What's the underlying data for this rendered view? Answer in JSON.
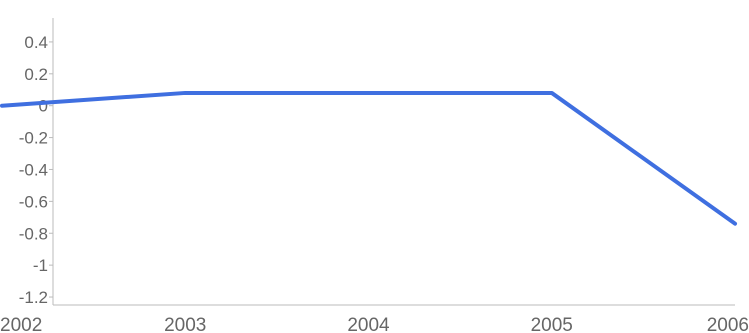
{
  "chart_data": {
    "type": "line",
    "x": [
      2002,
      2003,
      2004,
      2005,
      2006
    ],
    "series": [
      {
        "values": [
          0,
          0.08,
          0.08,
          0.08,
          -0.74
        ],
        "color": "#3f6fe0"
      }
    ],
    "x_tick_labels": [
      "2002",
      "2003",
      "2004",
      "2005",
      "2006"
    ],
    "y_tick_labels": [
      "0.4",
      "0.2",
      "0",
      "-0.2",
      "-0.4",
      "-0.6",
      "-0.8",
      "-1",
      "-1.2"
    ],
    "y_ticks": [
      0.4,
      0.2,
      0,
      -0.2,
      -0.4,
      -0.6,
      -0.8,
      -1,
      -1.2
    ],
    "xlim": [
      2002,
      2006
    ],
    "ylim": [
      -1.25,
      0.55
    ],
    "title": "",
    "xlabel": "",
    "ylabel": "",
    "grid": false,
    "legend": "none",
    "axis_color": "#bbbbbb",
    "text_color": "#666666"
  }
}
